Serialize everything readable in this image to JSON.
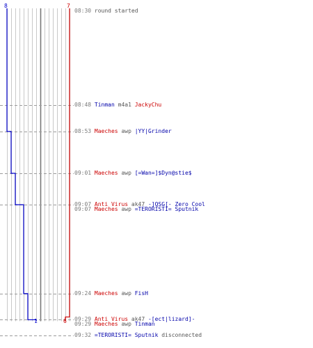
{
  "scale": {
    "start_minutes": 510,
    "end_minutes": 572
  },
  "teams": {
    "blue": {
      "color": "#0000cc",
      "start_count": "8",
      "end_count": "1"
    },
    "red": {
      "color": "#cc0000",
      "start_count": "7",
      "end_count": "6"
    }
  },
  "events": [
    {
      "time": "08:30",
      "parts": [
        {
          "text": "round started",
          "color": "plain"
        }
      ]
    },
    {
      "time": "08:48",
      "parts": [
        {
          "text": "Tinman",
          "color": "blue"
        },
        {
          "text": " m4a1 ",
          "color": "plain"
        },
        {
          "text": "JackyChu",
          "color": "red"
        }
      ]
    },
    {
      "time": "08:53",
      "parts": [
        {
          "text": "Maeches",
          "color": "red"
        },
        {
          "text": " awp ",
          "color": "plain"
        },
        {
          "text": "|YY|Grinder",
          "color": "blue"
        }
      ]
    },
    {
      "time": "09:01",
      "parts": [
        {
          "text": "Maeches",
          "color": "red"
        },
        {
          "text": " awp ",
          "color": "plain"
        },
        {
          "text": "[=Wan=]$Dyn@stie$",
          "color": "blue"
        }
      ]
    },
    {
      "time": "09:07",
      "parts": [
        {
          "text": "Anti Virus",
          "color": "red"
        },
        {
          "text": " ak47 ",
          "color": "plain"
        },
        {
          "text": "-]QSG[- Zero Cool",
          "color": "blue"
        }
      ]
    },
    {
      "time": "09:07",
      "parts": [
        {
          "text": "Maeches",
          "color": "red"
        },
        {
          "text": " awp ",
          "color": "plain"
        },
        {
          "text": "=TERORISTI= Sputnik",
          "color": "blue"
        }
      ]
    },
    {
      "time": "09:24",
      "parts": [
        {
          "text": "Maeches",
          "color": "red"
        },
        {
          "text": " awp ",
          "color": "plain"
        },
        {
          "text": "FisH",
          "color": "blue"
        }
      ]
    },
    {
      "time": "09:29",
      "parts": [
        {
          "text": "Anti Virus",
          "color": "red"
        },
        {
          "text": " ak47 ",
          "color": "plain"
        },
        {
          "text": "-[ect|lizard]-",
          "color": "blue"
        }
      ]
    },
    {
      "time": "09:29",
      "parts": [
        {
          "text": "Maeches",
          "color": "red"
        },
        {
          "text": " awp ",
          "color": "plain"
        },
        {
          "text": "Tinman",
          "color": "blue"
        }
      ]
    },
    {
      "time": "09:32",
      "parts": [
        {
          "text": "=TERORISTI= Sputnik",
          "color": "blue"
        },
        {
          "text": " disconnected",
          "color": "plain"
        }
      ]
    }
  ]
}
